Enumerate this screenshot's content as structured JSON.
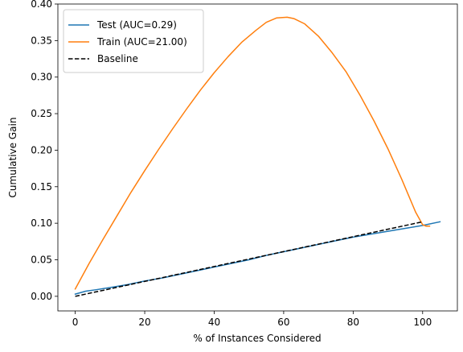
{
  "chart_data": {
    "type": "line",
    "title": "",
    "xlabel": "% of Instances Considered",
    "ylabel": "Cumulative Gain",
    "xlim": [
      -5,
      110
    ],
    "ylim": [
      -0.02,
      0.4
    ],
    "xticks": [
      0,
      20,
      40,
      60,
      80,
      100
    ],
    "xtick_labels": [
      "0",
      "20",
      "40",
      "60",
      "80",
      "100"
    ],
    "yticks": [
      0.0,
      0.05,
      0.1,
      0.15,
      0.2,
      0.25,
      0.3,
      0.35,
      0.4
    ],
    "ytick_labels": [
      "0.00",
      "0.05",
      "0.10",
      "0.15",
      "0.20",
      "0.25",
      "0.30",
      "0.35",
      "0.40"
    ],
    "grid": false,
    "legend_position": "top-left",
    "series": [
      {
        "name": "Test (AUC=0.29)",
        "color": "#1f77b4",
        "dash": "solid",
        "x": [
          0,
          3,
          6,
          10,
          15,
          20,
          25,
          30,
          35,
          40,
          45,
          50,
          55,
          60,
          65,
          70,
          75,
          80,
          85,
          90,
          95,
          100,
          105
        ],
        "y": [
          0.003,
          0.007,
          0.009,
          0.012,
          0.016,
          0.021,
          0.025,
          0.03,
          0.035,
          0.04,
          0.045,
          0.05,
          0.056,
          0.061,
          0.066,
          0.071,
          0.076,
          0.081,
          0.085,
          0.089,
          0.093,
          0.097,
          0.102
        ]
      },
      {
        "name": "Train (AUC=21.00)",
        "color": "#ff7f0e",
        "dash": "solid",
        "x": [
          0,
          4,
          8,
          12,
          16,
          20,
          24,
          28,
          32,
          36,
          40,
          44,
          48,
          52,
          55,
          58,
          61,
          63,
          66,
          70,
          74,
          78,
          82,
          86,
          90,
          94,
          98,
          100,
          101,
          102
        ],
        "y": [
          0.01,
          0.045,
          0.078,
          0.11,
          0.142,
          0.172,
          0.201,
          0.229,
          0.256,
          0.282,
          0.306,
          0.328,
          0.348,
          0.364,
          0.375,
          0.381,
          0.382,
          0.38,
          0.373,
          0.356,
          0.333,
          0.307,
          0.275,
          0.24,
          0.202,
          0.16,
          0.115,
          0.098,
          0.096,
          0.096
        ]
      },
      {
        "name": "Baseline",
        "color": "#000000",
        "dash": "dashed",
        "x": [
          0,
          100
        ],
        "y": [
          0.0,
          0.102
        ]
      }
    ]
  }
}
